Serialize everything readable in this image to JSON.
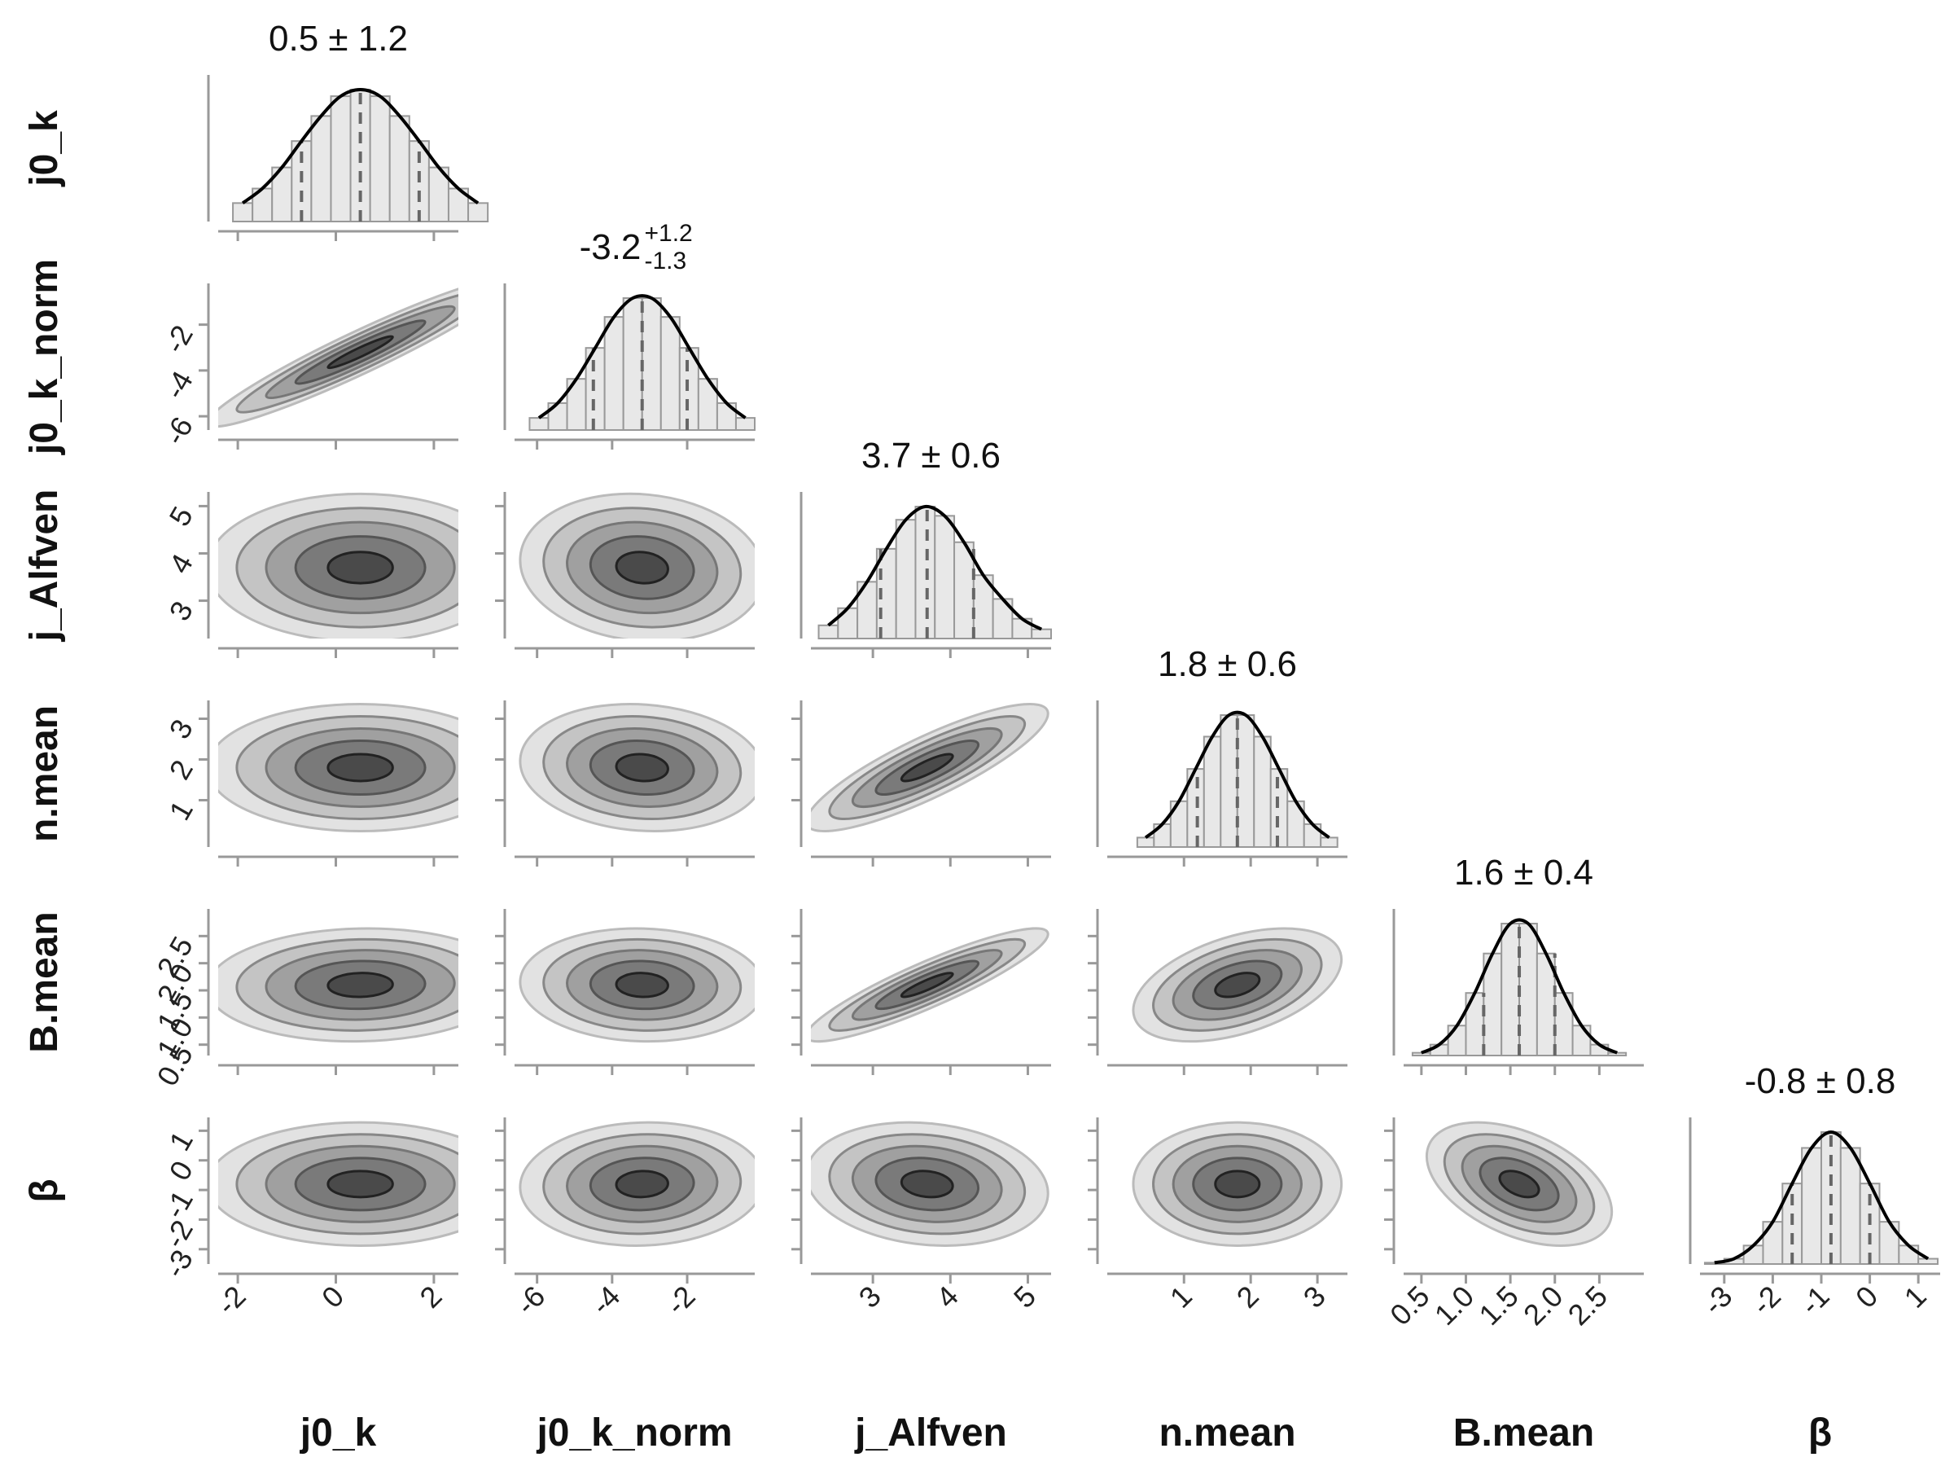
{
  "chart_data": {
    "type": "corner",
    "parameters": [
      {
        "name": "j0_k",
        "summary": "0.5 ± 1.2",
        "lim": [
          -2.4,
          2.5
        ],
        "ticks": [
          -2,
          0,
          2
        ],
        "quantiles": [
          -0.7,
          0.5,
          1.7
        ],
        "bins": [
          -2.1,
          -1.7,
          -1.3,
          -0.9,
          -0.5,
          -0.1,
          0.3,
          0.7,
          1.1,
          1.5,
          1.9,
          2.3,
          2.7,
          3.1
        ],
        "counts": [
          14,
          25,
          41,
          61,
          80,
          95,
          100,
          95,
          80,
          61,
          41,
          25,
          14
        ]
      },
      {
        "name": "j0_k_norm",
        "summary": {
          "center": "-3.2",
          "upper": "+1.2",
          "lower": "-1.3"
        },
        "lim": [
          -6.6,
          -0.2
        ],
        "ticks": [
          -6,
          -4,
          -2
        ],
        "quantiles": [
          -4.5,
          -3.2,
          -2.0
        ],
        "bins": [
          -6.2,
          -5.7,
          -5.2,
          -4.7,
          -4.2,
          -3.7,
          -3.2,
          -2.7,
          -2.2,
          -1.7,
          -1.2,
          -0.7,
          -0.2
        ],
        "counts": [
          9,
          20,
          38,
          61,
          84,
          98,
          98,
          84,
          61,
          38,
          20,
          9
        ],
        "correlations": [
          0.95
        ]
      },
      {
        "name": "j_Alfven",
        "summary": "3.7 ± 0.6",
        "lim": [
          2.2,
          5.3
        ],
        "ticks": [
          3,
          4,
          5
        ],
        "quantiles": [
          3.1,
          3.7,
          4.3
        ],
        "bins": [
          2.3,
          2.55,
          2.8,
          3.05,
          3.3,
          3.55,
          3.8,
          4.05,
          4.3,
          4.55,
          4.8,
          5.05,
          5.3
        ],
        "counts": [
          10,
          23,
          43,
          68,
          90,
          100,
          93,
          73,
          48,
          30,
          15,
          7
        ],
        "correlations": [
          0,
          -0.1
        ]
      },
      {
        "name": "n.mean",
        "summary": "1.8 ± 0.6",
        "lim": [
          -0.15,
          3.45
        ],
        "ticks": [
          1,
          2,
          3
        ],
        "quantiles": [
          1.2,
          1.8,
          2.4
        ],
        "bins": [
          0.3,
          0.55,
          0.8,
          1.05,
          1.3,
          1.55,
          1.8,
          2.05,
          2.3,
          2.55,
          2.8,
          3.05,
          3.3
        ],
        "counts": [
          7,
          17,
          34,
          58,
          82,
          98,
          98,
          82,
          58,
          34,
          17,
          7
        ],
        "correlations": [
          0,
          -0.1,
          0.85
        ]
      },
      {
        "name": "B.mean",
        "summary": "1.6 ± 0.4",
        "lim": [
          0.3,
          3.0
        ],
        "ticks": [
          0.5,
          {
            "value": 1,
            "label": "1.0"
          },
          1.5,
          {
            "value": 2,
            "label": "2.0"
          },
          2.5
        ],
        "quantiles": [
          1.2,
          1.6,
          2.0
        ],
        "bins": [
          0.4,
          0.6,
          0.8,
          1.0,
          1.2,
          1.4,
          1.6,
          1.8,
          2.0,
          2.2,
          2.4,
          2.6,
          2.8
        ],
        "counts": [
          2,
          8,
          22,
          46,
          75,
          97,
          97,
          75,
          46,
          22,
          8,
          2
        ],
        "correlations": [
          0.05,
          -0.05,
          0.9,
          0.45
        ]
      },
      {
        "name": "β",
        "summary": "-0.8 ± 0.8",
        "lim": [
          -3.5,
          1.45
        ],
        "ticks": [
          -3,
          -2,
          -1,
          0,
          1
        ],
        "quantiles": [
          -1.6,
          -0.8,
          0.0
        ],
        "bins": [
          -3.4,
          -3.0,
          -2.6,
          -2.2,
          -1.8,
          -1.4,
          -1.0,
          -0.6,
          -0.2,
          0.2,
          0.6,
          1.0,
          1.4
        ],
        "counts": [
          1,
          4,
          14,
          32,
          61,
          88,
          100,
          88,
          61,
          32,
          14,
          4
        ],
        "correlations": [
          0,
          0.05,
          -0.15,
          0,
          -0.45
        ]
      }
    ]
  }
}
